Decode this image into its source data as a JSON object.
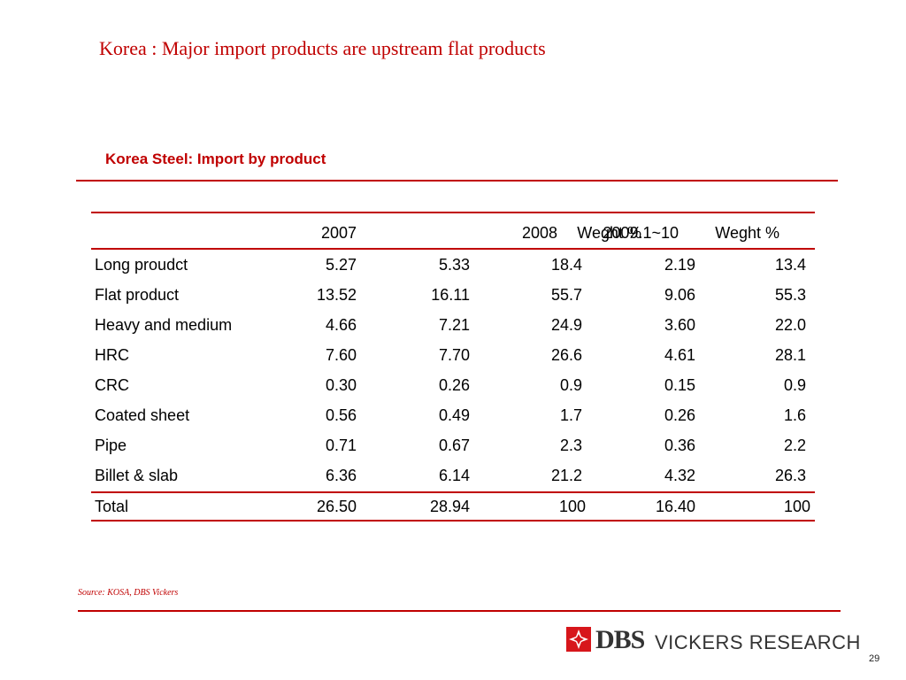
{
  "slide": {
    "title": "Korea : Major import products are upstream flat products",
    "table_title": "Korea Steel: Import by product",
    "source": "Source: KOSA, DBS Vickers",
    "page_number": "29"
  },
  "logo": {
    "brand": "DBS",
    "tagline": "VICKERS RESEARCH",
    "colors": {
      "mark": "#d7161b",
      "text": "#333333"
    }
  },
  "colors": {
    "accent": "#c00000"
  },
  "table": {
    "headers": [
      "",
      "2007",
      "2008",
      "Weght %",
      "2009.1~10",
      "Weght %"
    ],
    "rows": [
      {
        "label": "Long proudct",
        "v2007": "5.27",
        "v2008": "5.33",
        "w2008": "18.4",
        "v2009": "2.19",
        "w2009": "13.4"
      },
      {
        "label": "Flat product",
        "v2007": "13.52",
        "v2008": "16.11",
        "w2008": "55.7",
        "v2009": "9.06",
        "w2009": "55.3"
      },
      {
        "label": "Heavy and medium",
        "v2007": "4.66",
        "v2008": "7.21",
        "w2008": "24.9",
        "v2009": "3.60",
        "w2009": "22.0"
      },
      {
        "label": "HRC",
        "v2007": "7.60",
        "v2008": "7.70",
        "w2008": "26.6",
        "v2009": "4.61",
        "w2009": "28.1"
      },
      {
        "label": "CRC",
        "v2007": "0.30",
        "v2008": "0.26",
        "w2008": "0.9",
        "v2009": "0.15",
        "w2009": "0.9"
      },
      {
        "label": "Coated sheet",
        "v2007": "0.56",
        "v2008": "0.49",
        "w2008": "1.7",
        "v2009": "0.26",
        "w2009": "1.6"
      },
      {
        "label": "Pipe",
        "v2007": "0.71",
        "v2008": "0.67",
        "w2008": "2.3",
        "v2009": "0.36",
        "w2009": "2.2"
      },
      {
        "label": "Billet & slab",
        "v2007": "6.36",
        "v2008": "6.14",
        "w2008": "21.2",
        "v2009": "4.32",
        "w2009": "26.3"
      }
    ],
    "total": {
      "label": "Total",
      "v2007": "26.50",
      "v2008": "28.94",
      "w2008": "100",
      "v2009": "16.40",
      "w2009": "100"
    }
  }
}
